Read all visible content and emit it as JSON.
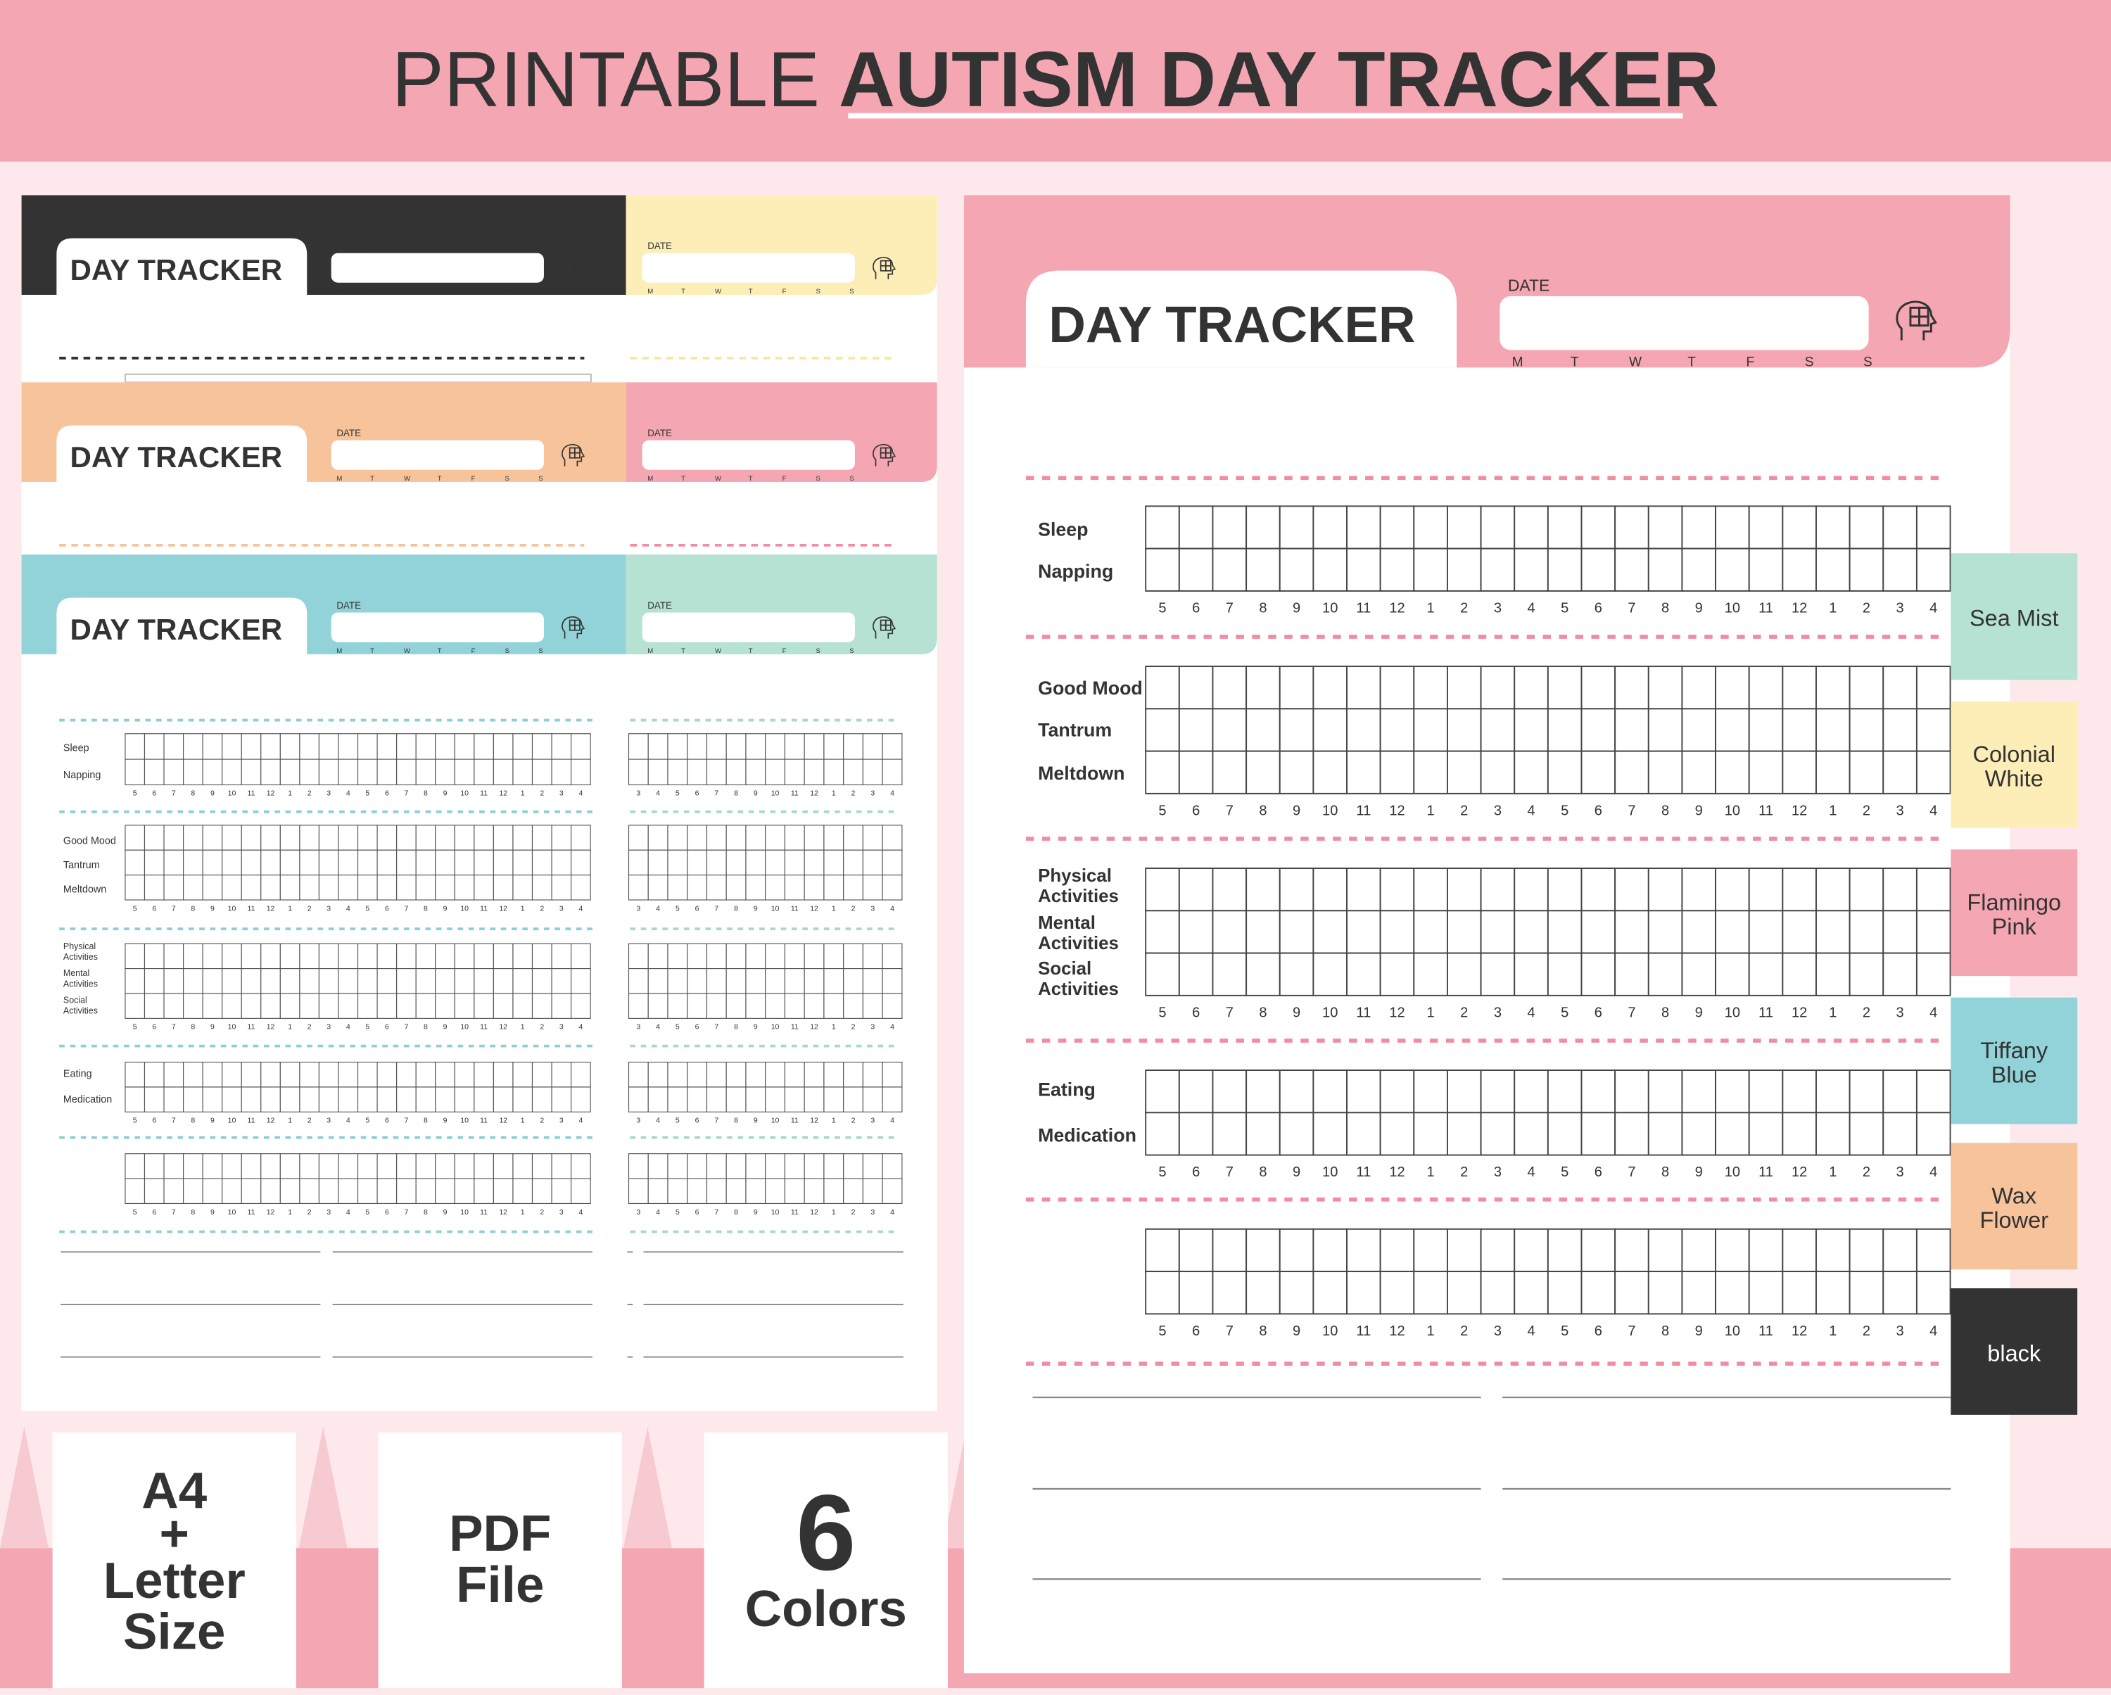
{
  "banner": {
    "title_light": "PRINTABLE",
    "title_bold": "AUTISM DAY TRACKER"
  },
  "tracker": {
    "title": "DAY TRACKER",
    "date_label": "DATE",
    "weekdays": [
      "M",
      "T",
      "W",
      "T",
      "F",
      "S",
      "S"
    ],
    "hours": [
      "5",
      "6",
      "7",
      "8",
      "9",
      "10",
      "11",
      "12",
      "1",
      "2",
      "3",
      "4",
      "5",
      "6",
      "7",
      "8",
      "9",
      "10",
      "11",
      "12",
      "1",
      "2",
      "3",
      "4"
    ],
    "hours_clipped": [
      "3",
      "4",
      "5",
      "6",
      "7",
      "8",
      "9",
      "10",
      "11",
      "12",
      "1",
      "2",
      "3",
      "4"
    ],
    "groups": [
      {
        "rows": [
          "Sleep",
          "Napping"
        ]
      },
      {
        "rows": [
          "Good Mood",
          "Tantrum",
          "Meltdown"
        ]
      },
      {
        "rows": [
          "Physical Activities",
          "Mental Activities",
          "Social Activities"
        ]
      },
      {
        "rows": [
          "Eating",
          "Medication"
        ]
      },
      {
        "rows": [
          "",
          ""
        ]
      }
    ]
  },
  "swatches": [
    {
      "name": "Sea Mist",
      "color": "#b5e2d3",
      "text_color": "#333333"
    },
    {
      "name": "Colonial White",
      "color": "#fdeeb8",
      "text_color": "#333333"
    },
    {
      "name": "Flamingo Pink",
      "color": "#f4a6b2",
      "text_color": "#333333"
    },
    {
      "name": "Tiffany Blue",
      "color": "#91d3d9",
      "text_color": "#333333"
    },
    {
      "name": "Wax Flower",
      "color": "#f6c39a",
      "text_color": "#333333"
    },
    {
      "name": "black",
      "color": "#333333",
      "text_color": "#ffffff"
    }
  ],
  "badges": [
    {
      "lines": [
        "A4",
        "+",
        "Letter",
        "Size"
      ]
    },
    {
      "lines": [
        "PDF",
        "File"
      ]
    },
    {
      "big": "6",
      "lines": [
        "Colors"
      ]
    }
  ],
  "colors": {
    "banner": "#f4a6b2",
    "background": "#fde8ec",
    "bottom_band": "#f4a6b2",
    "text_dark": "#333333",
    "dash_pink": "#f08da0",
    "dash_blue": "#8ccfd6",
    "dash_peach": "#f6c39a",
    "dash_yellow": "#f7e7a0",
    "dash_black": "#333333"
  },
  "icons": {
    "tracker_logo": "head-puzzle-icon"
  }
}
